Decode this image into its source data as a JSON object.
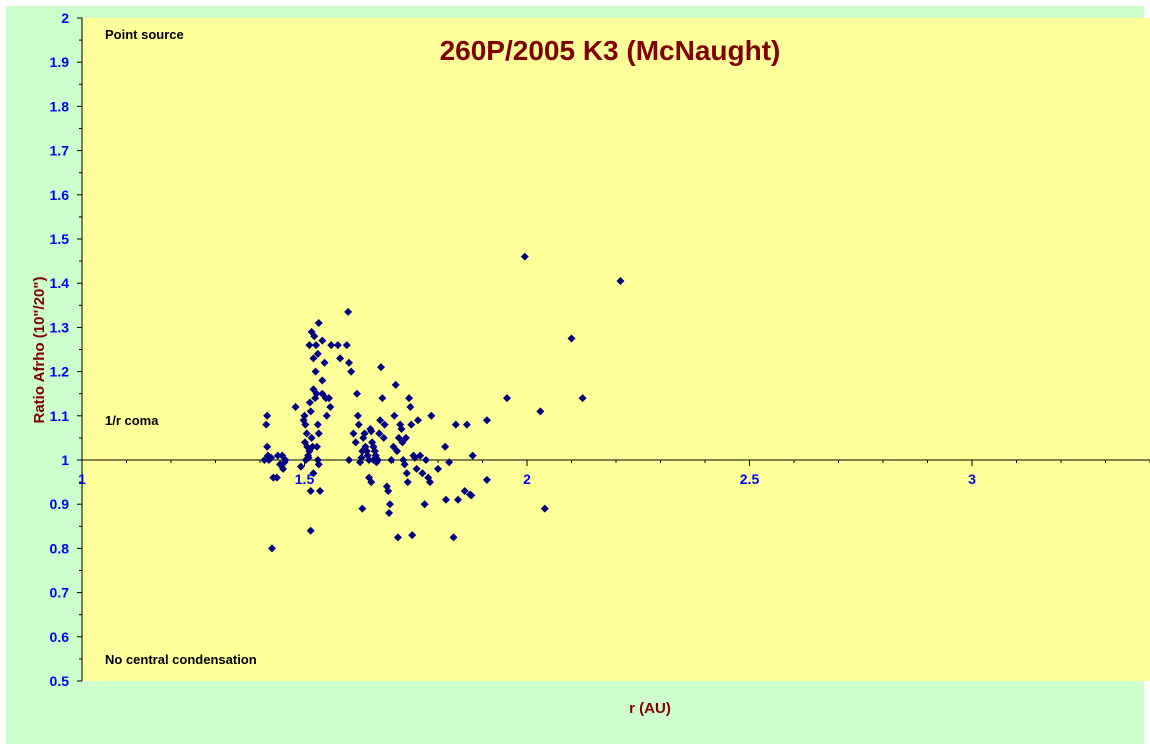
{
  "colors": {
    "outer_background": "#ccffcc",
    "plot_background": "#ffff99",
    "title": "#800000",
    "axis_label": "#800000",
    "tick_label": "#0000ff",
    "marker": "#000080",
    "annotation": "#000000"
  },
  "chart_data": {
    "type": "scatter",
    "title": "260P/2005 K3 (McNaught)",
    "xlabel": "r (AU)",
    "ylabel": "Ratio Afrho (10\"/20\")",
    "xlim": [
      1,
      3.4
    ],
    "ylim": [
      0.5,
      2
    ],
    "x_ticks": [
      1,
      1.5,
      2,
      2.5,
      3
    ],
    "x_tick_labels": [
      "1",
      "1.5",
      "2",
      "2.5",
      "3"
    ],
    "y_ticks": [
      0.5,
      0.6,
      0.7,
      0.8,
      0.9,
      1,
      1.1,
      1.2,
      1.3,
      1.4,
      1.5,
      1.6,
      1.7,
      1.8,
      1.9,
      2
    ],
    "y_tick_labels": [
      "0.5",
      "0.6",
      "0.7",
      "0.8",
      "0.9",
      "1",
      "1.1",
      "1.2",
      "1.3",
      "1.4",
      "1.5",
      "1.6",
      "1.7",
      "1.8",
      "1.9",
      "2"
    ],
    "x_axis_crosses_at_y": 1,
    "grid": false,
    "legend": "none",
    "marker": "diamond",
    "annotations": {
      "top": "Point source",
      "middle": "1/r coma",
      "bottom": "No central condensation"
    },
    "series": [
      {
        "points": [
          [
            1.416,
            1.1
          ],
          [
            1.414,
            1.08
          ],
          [
            1.416,
            1.03
          ],
          [
            1.418,
            1.01
          ],
          [
            1.42,
            1.0
          ],
          [
            1.425,
            1.005
          ],
          [
            1.43,
            0.96
          ],
          [
            1.438,
            0.96
          ],
          [
            1.44,
            1.01
          ],
          [
            1.445,
            0.99
          ],
          [
            1.45,
            1.01
          ],
          [
            1.452,
            0.98
          ],
          [
            1.457,
            1.0
          ],
          [
            1.427,
            0.8
          ],
          [
            1.41,
            1.0
          ],
          [
            1.455,
            0.995
          ],
          [
            1.48,
            1.12
          ],
          [
            1.492,
            0.985
          ],
          [
            1.498,
            1.09
          ],
          [
            1.5,
            1.1
          ],
          [
            1.502,
            1.08
          ],
          [
            1.505,
            1.06
          ],
          [
            1.501,
            1.04
          ],
          [
            1.506,
            1.03
          ],
          [
            1.508,
            1.01
          ],
          [
            1.503,
            1.0
          ],
          [
            1.509,
            1.005
          ],
          [
            1.511,
            1.02
          ],
          [
            1.512,
            1.13
          ],
          [
            1.514,
            1.11
          ],
          [
            1.516,
            1.05
          ],
          [
            1.518,
            1.03
          ],
          [
            1.52,
            0.97
          ],
          [
            1.514,
            0.93
          ],
          [
            1.514,
            0.84
          ],
          [
            1.511,
            1.26
          ],
          [
            1.516,
            1.29
          ],
          [
            1.522,
            1.28
          ],
          [
            1.52,
            1.16
          ],
          [
            1.525,
            1.2
          ],
          [
            1.527,
            1.15
          ],
          [
            1.53,
            1.08
          ],
          [
            1.532,
            1.06
          ],
          [
            1.528,
            1.03
          ],
          [
            1.53,
            1.0
          ],
          [
            1.532,
            0.99
          ],
          [
            1.535,
            0.93
          ],
          [
            1.524,
            1.14
          ],
          [
            1.526,
            1.26
          ],
          [
            1.52,
            1.23
          ],
          [
            1.53,
            1.24
          ],
          [
            1.532,
            1.31
          ],
          [
            1.54,
            1.27
          ],
          [
            1.54,
            1.18
          ],
          [
            1.54,
            1.15
          ],
          [
            1.545,
            1.22
          ],
          [
            1.548,
            1.14
          ],
          [
            1.55,
            1.1
          ],
          [
            1.555,
            1.14
          ],
          [
            1.558,
            1.12
          ],
          [
            1.56,
            1.26
          ],
          [
            1.575,
            1.26
          ],
          [
            1.58,
            1.23
          ],
          [
            1.595,
            1.26
          ],
          [
            1.6,
            1.22
          ],
          [
            1.605,
            1.2
          ],
          [
            1.598,
            1.335
          ],
          [
            1.6,
            1.0
          ],
          [
            1.61,
            1.06
          ],
          [
            1.615,
            1.04
          ],
          [
            1.618,
            1.15
          ],
          [
            1.62,
            1.1
          ],
          [
            1.622,
            1.08
          ],
          [
            1.625,
            0.995
          ],
          [
            1.628,
            1.005
          ],
          [
            1.63,
            1.02
          ],
          [
            1.632,
            1.05
          ],
          [
            1.635,
            1.06
          ],
          [
            1.637,
            1.03
          ],
          [
            1.64,
            1.02
          ],
          [
            1.642,
            1.01
          ],
          [
            1.645,
            1.0
          ],
          [
            1.648,
            1.07
          ],
          [
            1.65,
            1.065
          ],
          [
            1.652,
            1.04
          ],
          [
            1.655,
            1.03
          ],
          [
            1.658,
            1.02
          ],
          [
            1.66,
            1.01
          ],
          [
            1.662,
            0.995
          ],
          [
            1.665,
            1.0
          ],
          [
            1.668,
            1.06
          ],
          [
            1.63,
            0.89
          ],
          [
            1.645,
            0.96
          ],
          [
            1.65,
            0.95
          ],
          [
            1.655,
            1.0
          ],
          [
            1.66,
            1.005
          ],
          [
            1.67,
            1.09
          ],
          [
            1.675,
            1.14
          ],
          [
            1.672,
            1.21
          ],
          [
            1.678,
            1.05
          ],
          [
            1.68,
            1.08
          ],
          [
            1.685,
            0.94
          ],
          [
            1.688,
            0.93
          ],
          [
            1.69,
            0.88
          ],
          [
            1.692,
            0.9
          ],
          [
            1.695,
            1.0
          ],
          [
            1.7,
            1.03
          ],
          [
            1.702,
            1.1
          ],
          [
            1.705,
            1.17
          ],
          [
            1.708,
            1.02
          ],
          [
            1.71,
            0.825
          ],
          [
            1.712,
            1.05
          ],
          [
            1.715,
            1.08
          ],
          [
            1.718,
            1.07
          ],
          [
            1.72,
            1.04
          ],
          [
            1.722,
            1.0
          ],
          [
            1.725,
            0.99
          ],
          [
            1.728,
            1.05
          ],
          [
            1.73,
            0.97
          ],
          [
            1.732,
            0.95
          ],
          [
            1.735,
            1.14
          ],
          [
            1.738,
            1.12
          ],
          [
            1.74,
            1.08
          ],
          [
            1.742,
            0.83
          ],
          [
            1.745,
            1.01
          ],
          [
            1.748,
            1.005
          ],
          [
            1.752,
            0.98
          ],
          [
            1.755,
            1.09
          ],
          [
            1.76,
            1.01
          ],
          [
            1.765,
            0.97
          ],
          [
            1.77,
            0.9
          ],
          [
            1.773,
            1.0
          ],
          [
            1.778,
            0.96
          ],
          [
            1.782,
            0.95
          ],
          [
            1.785,
            1.1
          ],
          [
            1.8,
            0.98
          ],
          [
            1.816,
            1.03
          ],
          [
            1.818,
            0.91
          ],
          [
            1.825,
            0.995
          ],
          [
            1.835,
            0.825
          ],
          [
            1.84,
            1.08
          ],
          [
            1.845,
            0.91
          ],
          [
            1.86,
            0.93
          ],
          [
            1.865,
            1.08
          ],
          [
            1.875,
            0.92
          ],
          [
            1.878,
            1.01
          ],
          [
            1.872,
            0.922
          ],
          [
            1.91,
            1.09
          ],
          [
            1.91,
            0.955
          ],
          [
            1.955,
            1.14
          ],
          [
            1.995,
            1.46
          ],
          [
            2.03,
            1.11
          ],
          [
            2.04,
            0.89
          ],
          [
            2.1,
            1.275
          ],
          [
            2.125,
            1.14
          ],
          [
            2.21,
            1.405
          ]
        ]
      }
    ]
  }
}
